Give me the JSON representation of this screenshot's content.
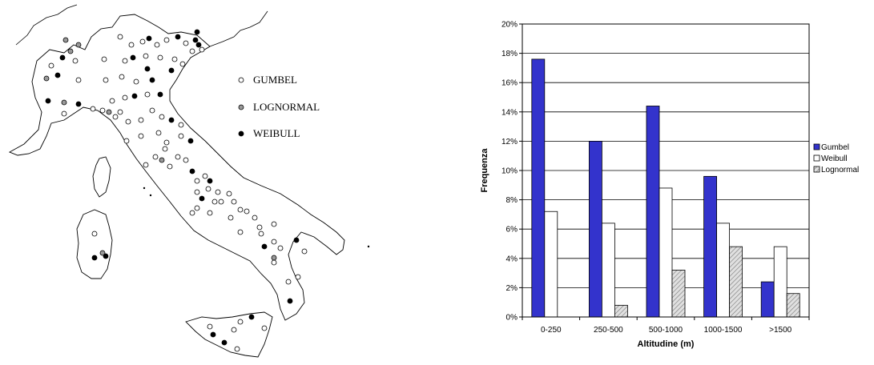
{
  "map": {
    "legend": [
      {
        "label": "GUMBEL",
        "fill": "#ffffff"
      },
      {
        "label": "LOGNORMAL",
        "fill": "#999999"
      },
      {
        "label": "WEIBULL",
        "fill": "#000000"
      }
    ]
  },
  "chart_data": {
    "type": "bar",
    "categories": [
      "0-250",
      "250-500",
      "500-1000",
      "1000-1500",
      ">1500"
    ],
    "series": [
      {
        "name": "Gumbel",
        "values": [
          17.6,
          12.0,
          14.4,
          9.6,
          2.4
        ],
        "color": "#3333cc"
      },
      {
        "name": "Weibull",
        "values": [
          7.2,
          6.4,
          8.8,
          6.4,
          4.8
        ],
        "color": "#ffffff"
      },
      {
        "name": "Lognormal",
        "values": [
          0.0,
          0.8,
          3.2,
          4.8,
          1.6
        ],
        "color": "#c8c8c8"
      }
    ],
    "yticks": [
      "0%",
      "2%",
      "4%",
      "6%",
      "8%",
      "10%",
      "12%",
      "14%",
      "16%",
      "18%",
      "20%"
    ],
    "xlabel": "Altitudine (m)",
    "ylabel": "Frequenza",
    "ylim": [
      0,
      20
    ],
    "grid": true,
    "legend_position": "right"
  }
}
